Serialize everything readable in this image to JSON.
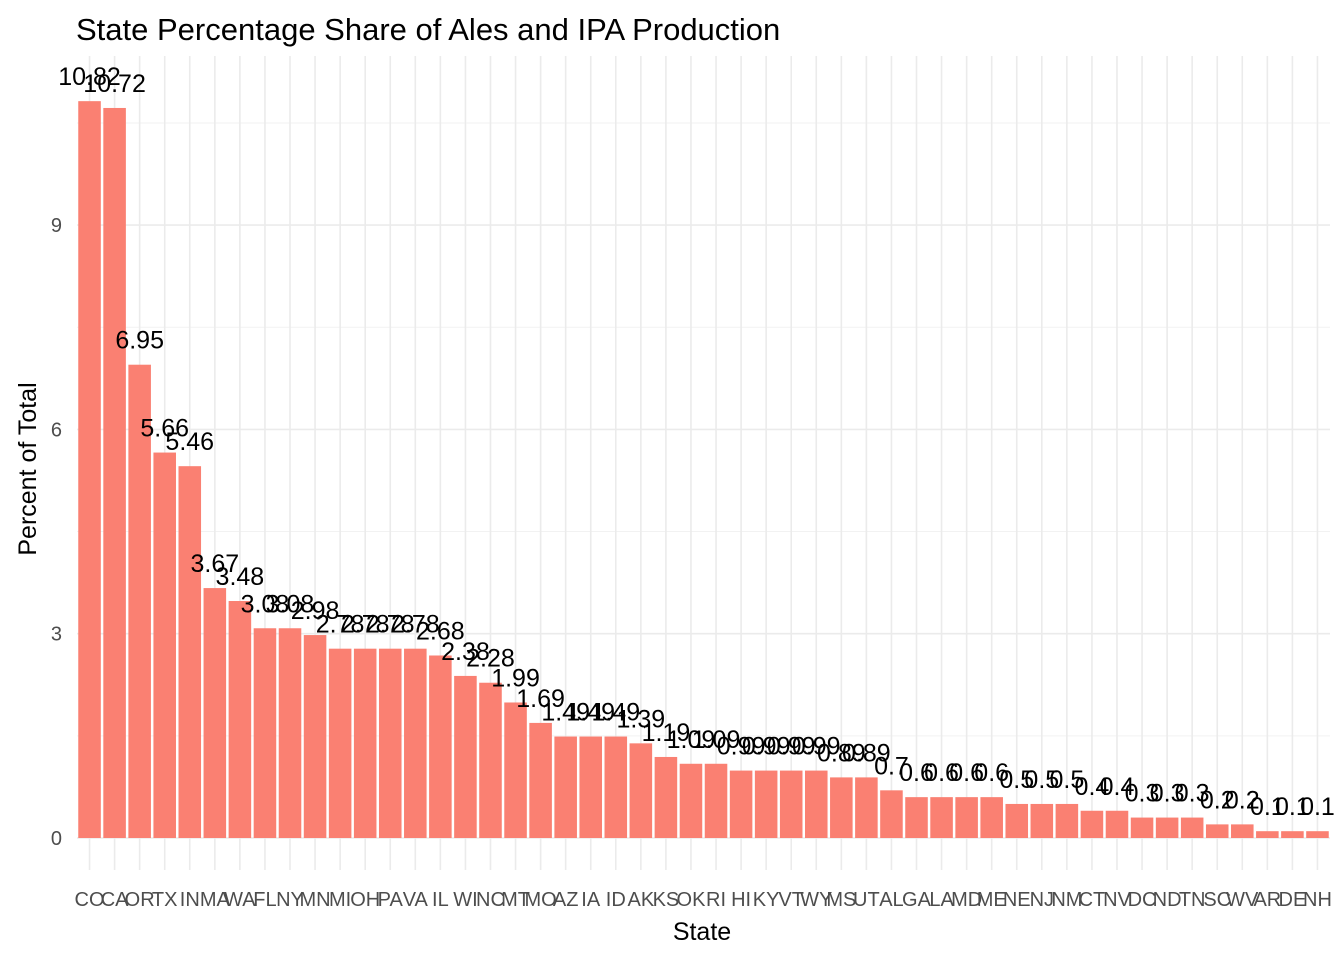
{
  "chart_data": {
    "type": "bar",
    "title": "State Percentage Share of Ales and IPA Production",
    "xlabel": "State",
    "ylabel": "Percent of Total",
    "categories": [
      "CO",
      "CA",
      "OR",
      "TX",
      "IN",
      "MA",
      "WA",
      "FL",
      "NY",
      "MN",
      "MI",
      "OH",
      "PA",
      "VA",
      "IL",
      "WI",
      "NC",
      "MT",
      "MO",
      "AZ",
      "IA",
      "ID",
      "AK",
      "KS",
      "OK",
      "RI",
      "HI",
      "KY",
      "VT",
      "WY",
      "MS",
      "UT",
      "AL",
      "GA",
      "LA",
      "MD",
      "ME",
      "NE",
      "NJ",
      "NM",
      "CT",
      "NV",
      "DC",
      "ND",
      "TN",
      "SC",
      "WV",
      "AR",
      "DE",
      "NH"
    ],
    "values": [
      10.82,
      10.72,
      6.95,
      5.66,
      5.46,
      3.67,
      3.48,
      3.08,
      3.08,
      2.98,
      2.78,
      2.78,
      2.78,
      2.78,
      2.68,
      2.38,
      2.28,
      1.99,
      1.69,
      1.49,
      1.49,
      1.49,
      1.39,
      1.19,
      1.09,
      1.09,
      0.99,
      0.99,
      0.99,
      0.99,
      0.89,
      0.89,
      0.7,
      0.6,
      0.6,
      0.6,
      0.6,
      0.5,
      0.5,
      0.5,
      0.4,
      0.4,
      0.3,
      0.3,
      0.3,
      0.2,
      0.2,
      0.1,
      0.1,
      0.1
    ],
    "ylim": [
      0,
      11.4
    ],
    "y_ticks": [
      0,
      3,
      6,
      9
    ],
    "bar_color": "#FA8072",
    "grid": true,
    "legend": "none"
  }
}
